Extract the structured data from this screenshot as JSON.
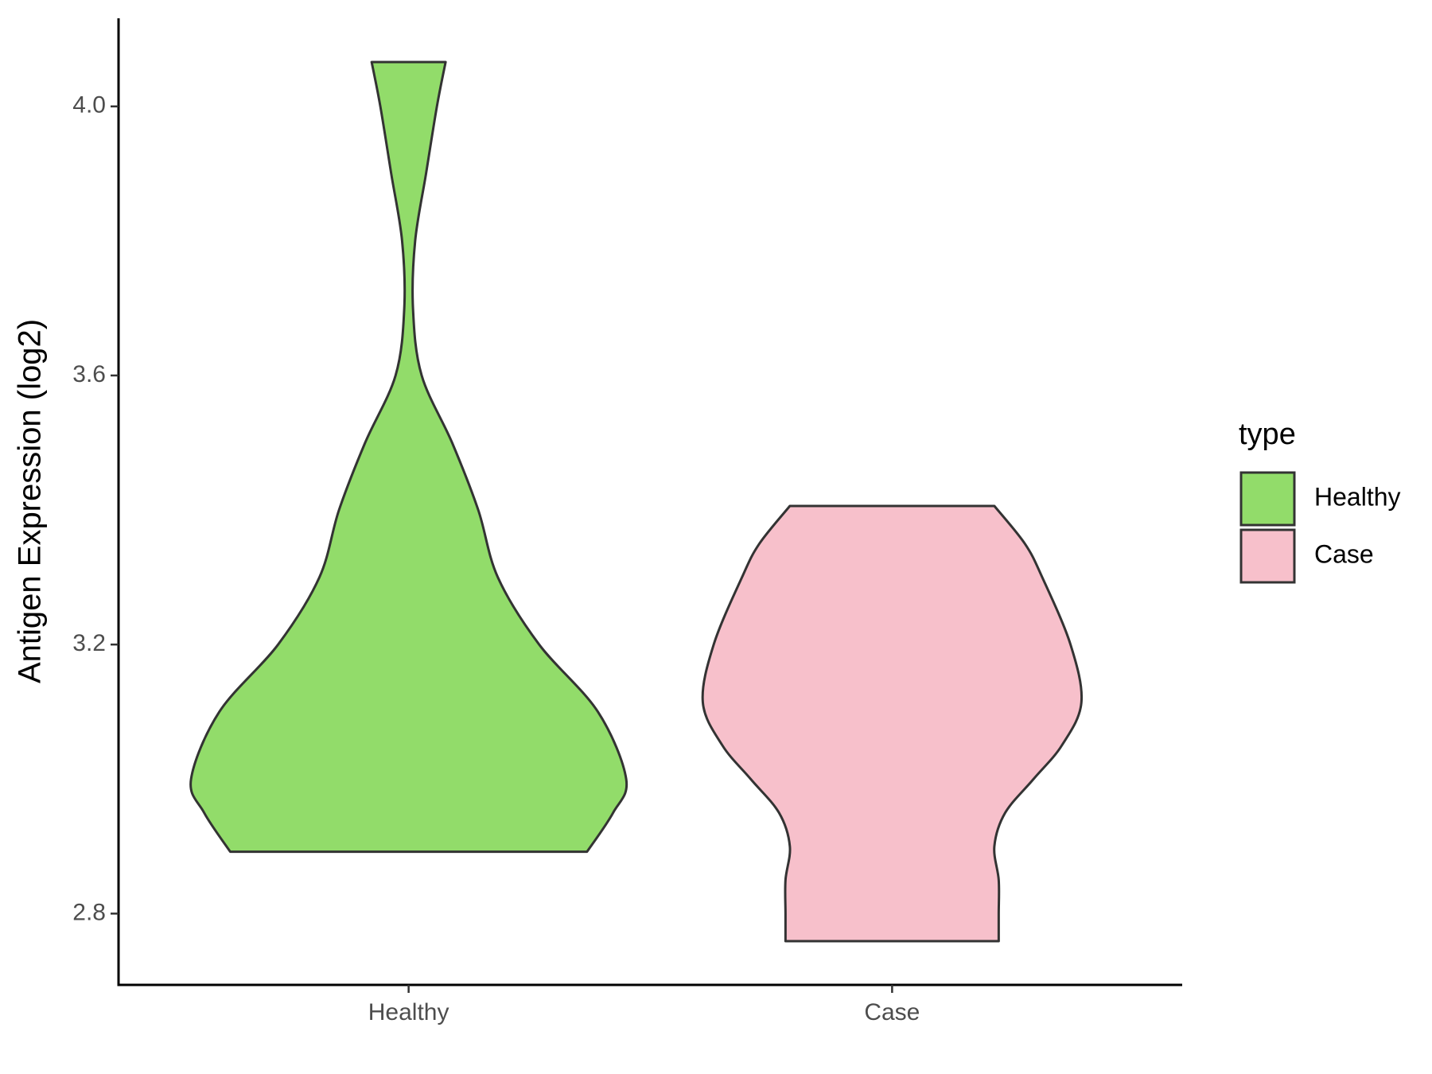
{
  "chart_data": {
    "type": "violin",
    "y_label": "Antigen Expression (log2)",
    "categories": [
      "Healthy",
      "Case"
    ],
    "series": [
      {
        "name": "Healthy",
        "color": "#92dc6a",
        "density": {
          "y": [
            4.066,
            4.0,
            3.9,
            3.8,
            3.7,
            3.6,
            3.5,
            3.4,
            3.3,
            3.2,
            3.1,
            3.0,
            2.95,
            2.892
          ],
          "width": [
            0.17,
            0.13,
            0.08,
            0.03,
            0.02,
            0.06,
            0.2,
            0.32,
            0.41,
            0.6,
            0.87,
            1.0,
            0.94,
            0.82
          ]
        }
      },
      {
        "name": "Case",
        "color": "#f7c0cb",
        "density": {
          "y": [
            3.406,
            3.35,
            3.3,
            3.2,
            3.114,
            3.05,
            3.0,
            2.95,
            2.9,
            2.85,
            2.8,
            2.759
          ],
          "width": [
            0.47,
            0.61,
            0.69,
            0.82,
            0.87,
            0.78,
            0.65,
            0.52,
            0.47,
            0.49,
            0.49,
            0.49
          ]
        }
      }
    ],
    "ylim": [
      2.694,
      4.131
    ],
    "yticks": [
      2.8,
      3.2,
      3.6,
      {
        "value": 4,
        "label": "4.0"
      }
    ],
    "legend_title": "type",
    "legend": "right"
  }
}
